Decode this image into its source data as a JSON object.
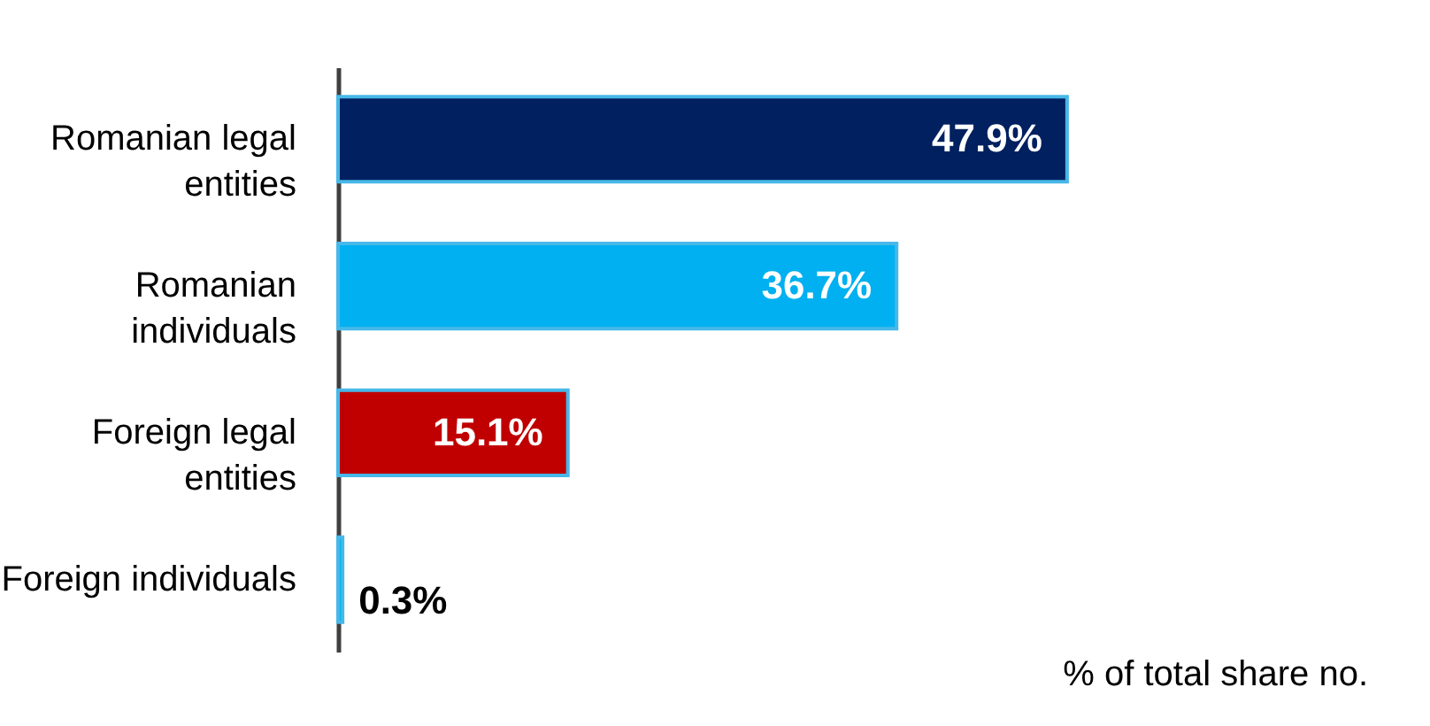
{
  "chart_data": {
    "type": "bar",
    "orientation": "horizontal",
    "categories": [
      "Romanian legal entities",
      "Romanian individuals",
      "Foreign legal entities",
      "Foreign individuals"
    ],
    "values": [
      47.9,
      36.7,
      15.1,
      0.3
    ],
    "colors": [
      "#002060",
      "#00b0f0",
      "#c00000",
      "#00b0f0"
    ],
    "value_labels": [
      "47.9%",
      "36.7%",
      "15.1%",
      "0.3%"
    ],
    "annotations": [
      "% of total share no."
    ]
  }
}
